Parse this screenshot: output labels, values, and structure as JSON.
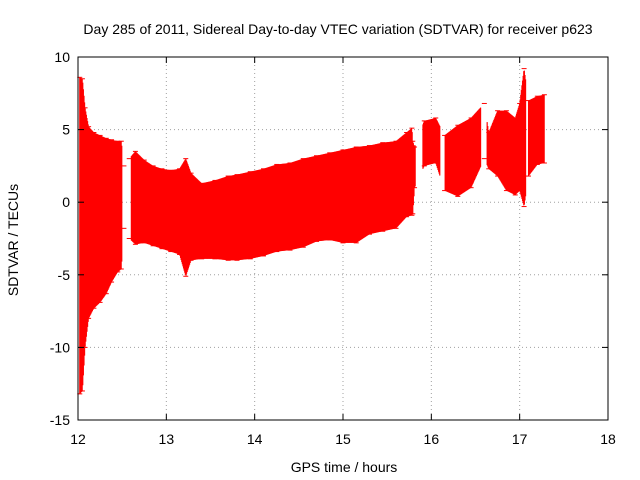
{
  "chart_data": {
    "type": "errorbar",
    "title": "Day 285 of 2011, Sidereal Day-to-day VTEC variation (SDTVAR) for receiver p623",
    "xlabel": "GPS time / hours",
    "ylabel": "SDTVAR / TECUs",
    "xlim": [
      12,
      18
    ],
    "ylim": [
      -15,
      10
    ],
    "x_ticks": [
      "12",
      "13",
      "14",
      "15",
      "16",
      "17",
      "18"
    ],
    "y_ticks": [
      "10",
      "5",
      "0",
      "-5",
      "-10",
      "-15"
    ],
    "grid": true,
    "series": [
      {
        "name": "SDTVAR",
        "color": "#ff0000",
        "envelope": [
          [
            12.02,
            8.6,
            -13.2
          ],
          [
            12.05,
            8.5,
            -13.0
          ],
          [
            12.08,
            6.5,
            -10.0
          ],
          [
            12.12,
            5.2,
            -8.0
          ],
          [
            12.18,
            4.8,
            -7.3
          ],
          [
            12.25,
            4.6,
            -6.9
          ],
          [
            12.32,
            4.4,
            -6.3
          ],
          [
            12.38,
            4.3,
            -5.5
          ],
          [
            12.45,
            4.2,
            -4.8
          ],
          [
            12.49,
            4.2,
            -4.6
          ],
          [
            12.52,
            2.5,
            -1.8
          ],
          [
            12.58,
            3.0,
            -2.5
          ],
          [
            12.65,
            3.5,
            -2.9
          ],
          [
            12.75,
            2.9,
            -2.8
          ],
          [
            12.85,
            2.5,
            -3.0
          ],
          [
            12.95,
            2.3,
            -3.2
          ],
          [
            13.05,
            2.2,
            -3.4
          ],
          [
            13.15,
            2.3,
            -3.6
          ],
          [
            13.22,
            3.0,
            -5.1
          ],
          [
            13.28,
            2.0,
            -4.0
          ],
          [
            13.4,
            1.3,
            -3.9
          ],
          [
            13.55,
            1.5,
            -3.9
          ],
          [
            13.7,
            1.8,
            -4.0
          ],
          [
            13.8,
            1.9,
            -4.0
          ],
          [
            13.95,
            2.1,
            -3.9
          ],
          [
            14.1,
            2.3,
            -3.7
          ],
          [
            14.25,
            2.6,
            -3.4
          ],
          [
            14.4,
            2.7,
            -3.3
          ],
          [
            14.55,
            3.0,
            -3.1
          ],
          [
            14.7,
            3.2,
            -2.7
          ],
          [
            14.85,
            3.4,
            -2.6
          ],
          [
            15.0,
            3.6,
            -2.8
          ],
          [
            15.15,
            3.8,
            -2.8
          ],
          [
            15.3,
            3.9,
            -2.2
          ],
          [
            15.45,
            4.1,
            -2.0
          ],
          [
            15.6,
            4.2,
            -1.8
          ],
          [
            15.72,
            4.8,
            -1.0
          ],
          [
            15.78,
            5.1,
            -0.9
          ],
          [
            15.79,
            4.2,
            -0.8
          ],
          [
            15.81,
            3.8,
            1.0
          ],
          [
            15.92,
            5.6,
            2.5
          ],
          [
            16.05,
            5.8,
            2.7
          ],
          [
            16.15,
            4.6,
            0.8
          ],
          [
            16.3,
            5.3,
            0.4
          ],
          [
            16.45,
            5.8,
            1.0
          ],
          [
            16.6,
            6.8,
            3.0
          ],
          [
            16.65,
            4.8,
            2.3
          ],
          [
            16.75,
            6.3,
            1.8
          ],
          [
            16.85,
            6.3,
            0.8
          ],
          [
            16.95,
            5.8,
            0.5
          ],
          [
            17.0,
            6.8,
            0.8
          ],
          [
            17.05,
            9.2,
            -0.3
          ],
          [
            17.1,
            7.0,
            1.8
          ],
          [
            17.2,
            7.3,
            2.6
          ],
          [
            17.28,
            7.4,
            2.7
          ]
        ],
        "gaps": [
          [
            12.5,
            12.6
          ],
          [
            15.82,
            15.9
          ],
          [
            16.1,
            16.15
          ],
          [
            16.56,
            16.63
          ],
          [
            17.07,
            17.1
          ]
        ]
      }
    ]
  }
}
